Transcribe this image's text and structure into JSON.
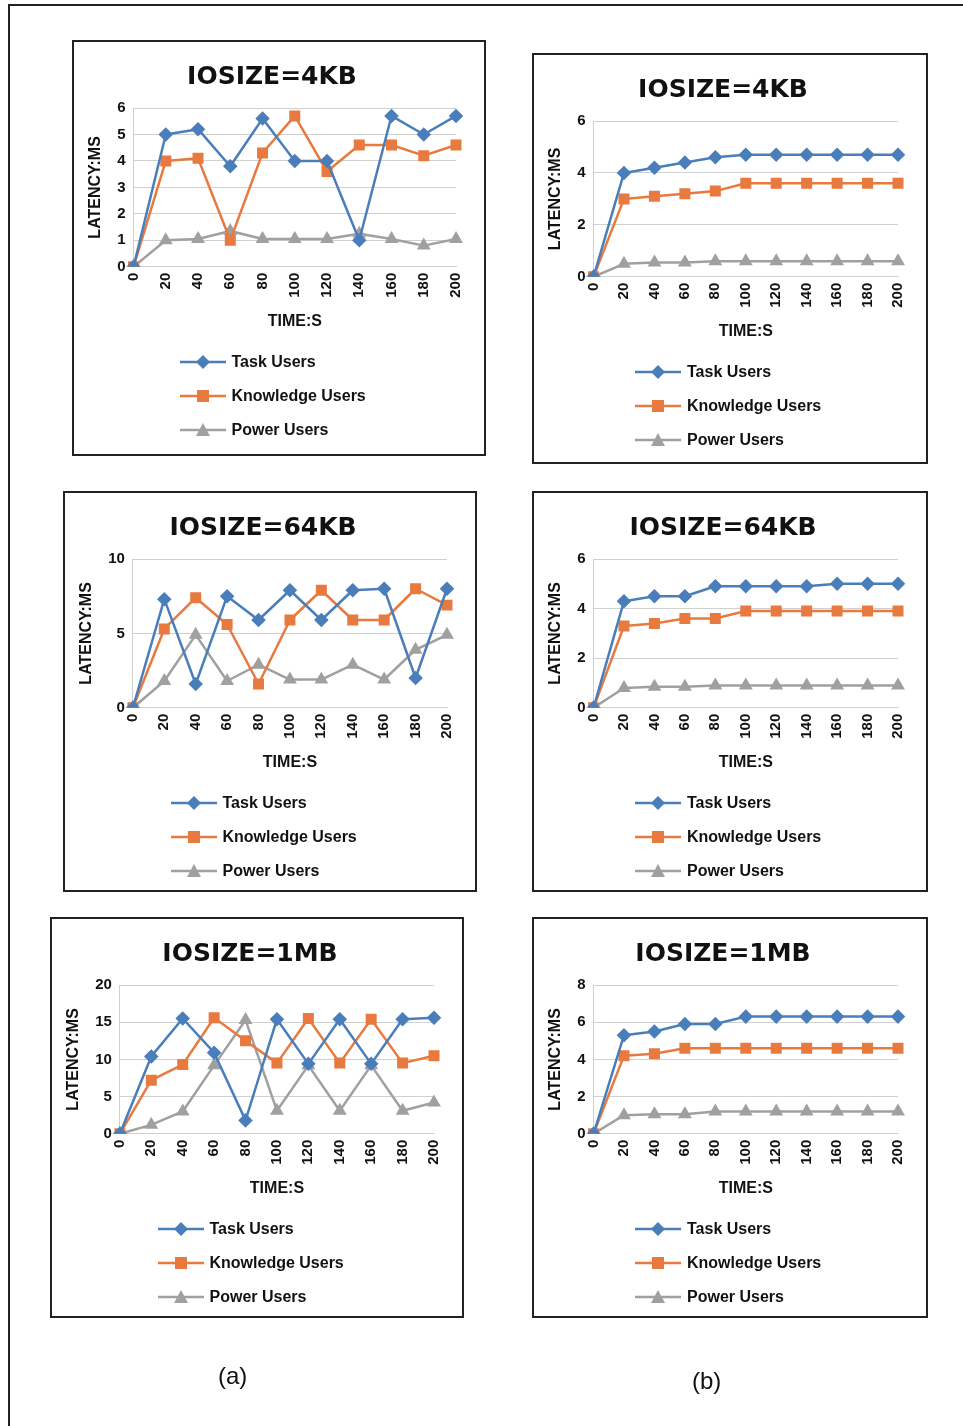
{
  "chart_data": [
    {
      "type": "line",
      "title": "IOSIZE=4KB",
      "xlabel": "TIME:S",
      "ylabel": "LATENCY:MS",
      "categories": [
        "0",
        "20",
        "40",
        "60",
        "80",
        "100",
        "120",
        "140",
        "160",
        "180",
        "200"
      ],
      "ylim": [
        0,
        6
      ],
      "yticks": [
        0,
        1,
        2,
        3,
        4,
        5,
        6
      ],
      "grid": "y",
      "legend": "bottom",
      "series": [
        {
          "name": "Task Users",
          "color": "#4a7ebb",
          "marker": "diamond",
          "values": [
            0,
            5,
            5.2,
            3.8,
            5.6,
            4,
            4,
            1,
            5.7,
            5,
            5.7
          ]
        },
        {
          "name": "Knowledge Users",
          "color": "#e8793f",
          "marker": "square",
          "values": [
            0,
            4,
            4.1,
            1,
            4.3,
            5.7,
            3.6,
            4.6,
            4.6,
            4.2,
            4.6
          ]
        },
        {
          "name": "Power Users",
          "color": "#a0a0a0",
          "marker": "triangle",
          "values": [
            0,
            1,
            1.05,
            1.35,
            1.05,
            1.05,
            1.05,
            1.25,
            1.05,
            0.8,
            1.05
          ]
        }
      ]
    },
    {
      "type": "line",
      "title": "IOSIZE=4KB",
      "xlabel": "TIME:S",
      "ylabel": "LATENCY:MS",
      "categories": [
        "0",
        "20",
        "40",
        "60",
        "80",
        "100",
        "120",
        "140",
        "160",
        "180",
        "200"
      ],
      "ylim": [
        0,
        6
      ],
      "yticks": [
        0,
        2,
        4,
        6
      ],
      "grid": "y",
      "legend": "bottom",
      "series": [
        {
          "name": "Task Users",
          "color": "#4a7ebb",
          "marker": "diamond",
          "values": [
            0,
            4,
            4.2,
            4.4,
            4.6,
            4.7,
            4.7,
            4.7,
            4.7,
            4.7,
            4.7
          ]
        },
        {
          "name": "Knowledge Users",
          "color": "#e8793f",
          "marker": "square",
          "values": [
            0,
            3,
            3.1,
            3.2,
            3.3,
            3.6,
            3.6,
            3.6,
            3.6,
            3.6,
            3.6
          ]
        },
        {
          "name": "Power Users",
          "color": "#a0a0a0",
          "marker": "triangle",
          "values": [
            0,
            0.5,
            0.55,
            0.55,
            0.6,
            0.6,
            0.6,
            0.6,
            0.6,
            0.6,
            0.6
          ]
        }
      ]
    },
    {
      "type": "line",
      "title": "IOSIZE=64KB",
      "xlabel": "TIME:S",
      "ylabel": "LATENCY:MS",
      "categories": [
        "0",
        "20",
        "40",
        "60",
        "80",
        "100",
        "120",
        "140",
        "160",
        "180",
        "200"
      ],
      "ylim": [
        0,
        10
      ],
      "yticks": [
        0,
        5,
        10
      ],
      "grid": "y",
      "legend": "bottom",
      "series": [
        {
          "name": "Task Users",
          "color": "#4a7ebb",
          "marker": "diamond",
          "values": [
            0,
            7.3,
            1.6,
            7.5,
            5.9,
            7.9,
            5.9,
            7.9,
            8,
            2,
            8
          ]
        },
        {
          "name": "Knowledge Users",
          "color": "#e8793f",
          "marker": "square",
          "values": [
            0,
            5.3,
            7.4,
            5.6,
            1.6,
            5.9,
            7.9,
            5.9,
            5.9,
            8,
            6.9
          ]
        },
        {
          "name": "Power Users",
          "color": "#a0a0a0",
          "marker": "triangle",
          "values": [
            0,
            1.8,
            4.9,
            1.8,
            2.9,
            1.9,
            1.9,
            2.9,
            1.9,
            3.9,
            4.9
          ]
        }
      ]
    },
    {
      "type": "line",
      "title": "IOSIZE=64KB",
      "xlabel": "TIME:S",
      "ylabel": "LATENCY:MS",
      "categories": [
        "0",
        "20",
        "40",
        "60",
        "80",
        "100",
        "120",
        "140",
        "160",
        "180",
        "200"
      ],
      "ylim": [
        0,
        6
      ],
      "yticks": [
        0,
        2,
        4,
        6
      ],
      "grid": "y",
      "legend": "bottom",
      "series": [
        {
          "name": "Task Users",
          "color": "#4a7ebb",
          "marker": "diamond",
          "values": [
            0,
            4.3,
            4.5,
            4.5,
            4.9,
            4.9,
            4.9,
            4.9,
            5,
            5,
            5
          ]
        },
        {
          "name": "Knowledge Users",
          "color": "#e8793f",
          "marker": "square",
          "values": [
            0,
            3.3,
            3.4,
            3.6,
            3.6,
            3.9,
            3.9,
            3.9,
            3.9,
            3.9,
            3.9
          ]
        },
        {
          "name": "Power Users",
          "color": "#a0a0a0",
          "marker": "triangle",
          "values": [
            0,
            0.8,
            0.85,
            0.85,
            0.9,
            0.9,
            0.9,
            0.9,
            0.9,
            0.9,
            0.9
          ]
        }
      ]
    },
    {
      "type": "line",
      "title": "IOSIZE=1MB",
      "xlabel": "TIME:S",
      "ylabel": "LATENCY:MS",
      "categories": [
        "0",
        "20",
        "40",
        "60",
        "80",
        "100",
        "120",
        "140",
        "160",
        "180",
        "200"
      ],
      "ylim": [
        0,
        20
      ],
      "yticks": [
        0,
        5,
        10,
        15,
        20
      ],
      "grid": "y",
      "legend": "bottom",
      "annotations": [
        "(a)"
      ],
      "series": [
        {
          "name": "Task Users",
          "color": "#4a7ebb",
          "marker": "diamond",
          "values": [
            0,
            10.4,
            15.5,
            10.9,
            1.8,
            15.4,
            9.4,
            15.4,
            9.4,
            15.4,
            15.6
          ]
        },
        {
          "name": "Knowledge Users",
          "color": "#e8793f",
          "marker": "square",
          "values": [
            0,
            7.2,
            9.3,
            15.6,
            12.5,
            9.5,
            15.5,
            9.5,
            15.4,
            9.5,
            10.5
          ]
        },
        {
          "name": "Power Users",
          "color": "#a0a0a0",
          "marker": "triangle",
          "values": [
            0,
            1.2,
            3,
            9.2,
            15.3,
            3.1,
            9.2,
            3.1,
            9.2,
            3.1,
            4.2
          ]
        }
      ]
    },
    {
      "type": "line",
      "title": "IOSIZE=1MB",
      "xlabel": "TIME:S",
      "ylabel": "LATENCY:MS",
      "categories": [
        "0",
        "20",
        "40",
        "60",
        "80",
        "100",
        "120",
        "140",
        "160",
        "180",
        "200"
      ],
      "ylim": [
        0,
        8
      ],
      "yticks": [
        0,
        2,
        4,
        6,
        8
      ],
      "grid": "y",
      "legend": "bottom",
      "annotations": [
        "(b)"
      ],
      "series": [
        {
          "name": "Task Users",
          "color": "#4a7ebb",
          "marker": "diamond",
          "values": [
            0,
            5.3,
            5.5,
            5.9,
            5.9,
            6.3,
            6.3,
            6.3,
            6.3,
            6.3,
            6.3
          ]
        },
        {
          "name": "Knowledge Users",
          "color": "#e8793f",
          "marker": "square",
          "values": [
            0,
            4.2,
            4.3,
            4.6,
            4.6,
            4.6,
            4.6,
            4.6,
            4.6,
            4.6,
            4.6
          ]
        },
        {
          "name": "Power Users",
          "color": "#a0a0a0",
          "marker": "triangle",
          "values": [
            0,
            1,
            1.05,
            1.05,
            1.2,
            1.2,
            1.2,
            1.2,
            1.2,
            1.2,
            1.2
          ]
        }
      ]
    }
  ]
}
